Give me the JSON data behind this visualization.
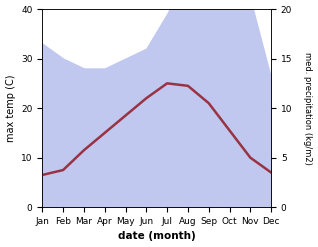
{
  "months": [
    "Jan",
    "Feb",
    "Mar",
    "Apr",
    "May",
    "Jun",
    "Jul",
    "Aug",
    "Sep",
    "Oct",
    "Nov",
    "Dec"
  ],
  "max_temp": [
    6.5,
    7.5,
    11.5,
    15.0,
    18.5,
    22.0,
    25.0,
    24.5,
    21.0,
    15.5,
    10.0,
    7.0
  ],
  "precipitation_kg": [
    16.5,
    15.0,
    14.0,
    14.0,
    15.0,
    16.0,
    19.5,
    23.5,
    20.5,
    23.5,
    21.0,
    13.0
  ],
  "temp_color": "#993344",
  "precip_fill_color": "#c0c8f0",
  "temp_ylim": [
    0,
    40
  ],
  "precip_ylim": [
    0,
    20
  ],
  "xlabel": "date (month)",
  "ylabel_left": "max temp (C)",
  "ylabel_right": "med. precipitation (kg/m2)",
  "left_ticks": [
    0,
    10,
    20,
    30,
    40
  ],
  "right_ticks": [
    0,
    5,
    10,
    15,
    20
  ],
  "background_color": "#ffffff"
}
